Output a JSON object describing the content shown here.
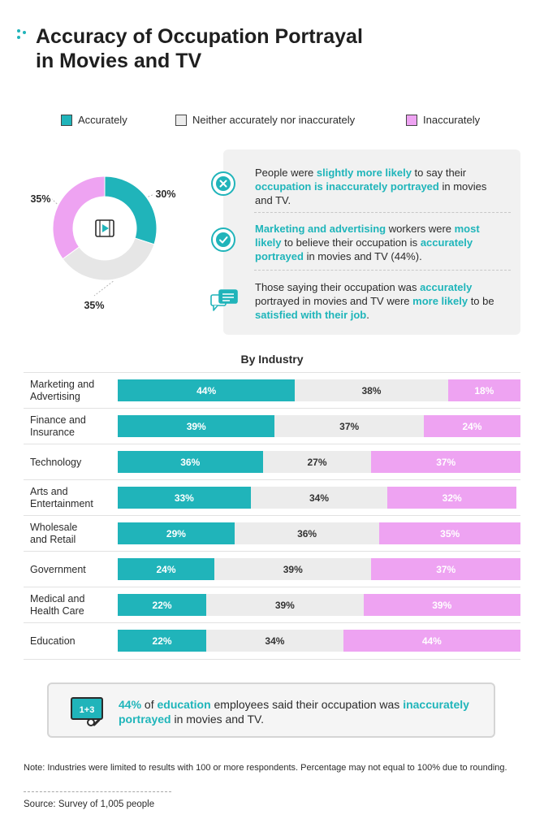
{
  "title_line1": "Accuracy of Occupation Portrayal",
  "title_line2": "in Movies and TV",
  "colors": {
    "accurately": "#20b4ba",
    "neither": "#ececec",
    "inaccurately": "#eea3f2",
    "accent_text": "#1fb5ba"
  },
  "icons": [
    "dots-icon",
    "film-icon",
    "x-circle-icon",
    "check-circle-icon",
    "chat-bubbles-icon",
    "chalkboard-icon"
  ],
  "legend": {
    "accurately": "Accurately",
    "neither": "Neither accurately nor inaccurately",
    "inaccurately": "Inaccurately"
  },
  "insights": [
    {
      "icon": "x-circle-icon",
      "parts": [
        [
          "People were ",
          false
        ],
        [
          "slightly more likely",
          true
        ],
        [
          " to say their ",
          false
        ],
        [
          "occupation is inaccurately portrayed",
          true
        ],
        [
          " in movies and TV.",
          false
        ]
      ]
    },
    {
      "icon": "check-circle-icon",
      "parts": [
        [
          "Marketing and advertising",
          true
        ],
        [
          " workers were ",
          false
        ],
        [
          "most likely",
          true
        ],
        [
          " to believe their occupation is ",
          false
        ],
        [
          "accurately portrayed",
          true
        ],
        [
          " in movies and TV (44%).",
          false
        ]
      ]
    },
    {
      "icon": "chat-bubbles-icon",
      "parts": [
        [
          "Those saying their occupation was ",
          false
        ],
        [
          "accurately",
          true
        ],
        [
          " portrayed in movies and TV were ",
          false
        ],
        [
          "more likely",
          true
        ],
        [
          " to be ",
          false
        ],
        [
          "satisfied with their job",
          true
        ],
        [
          ".",
          false
        ]
      ]
    }
  ],
  "industry_title": "By Industry",
  "callout_parts": [
    [
      "44%",
      true
    ],
    [
      " of ",
      false
    ],
    [
      "education",
      true
    ],
    [
      " employees said their occupation was ",
      false
    ],
    [
      "inaccurately portrayed",
      true
    ],
    [
      " in movies and TV.",
      false
    ]
  ],
  "note": "Note: Industries were limited to results with 100 or more respondents. Percentage may not equal to 100% due to rounding.",
  "source": "Source: Survey of 1,005 people",
  "chart_data": [
    {
      "type": "pie",
      "categories": [
        "Accurately",
        "Neither accurately nor inaccurately",
        "Inaccurately"
      ],
      "values": [
        30,
        35,
        35
      ],
      "labels": [
        "30%",
        "35%",
        "35%"
      ]
    },
    {
      "type": "bar",
      "stacked": true,
      "orientation": "horizontal",
      "title": "By Industry",
      "categories": [
        [
          "Marketing and",
          "Advertising"
        ],
        [
          "Finance and",
          "Insurance"
        ],
        [
          "Technology"
        ],
        [
          "Arts and",
          "Entertainment"
        ],
        [
          "Wholesale",
          "and Retail"
        ],
        [
          "Government"
        ],
        [
          "Medical and",
          "Health Care"
        ],
        [
          "Education"
        ]
      ],
      "series": [
        {
          "name": "Accurately",
          "values": [
            44,
            39,
            36,
            33,
            29,
            24,
            22,
            22
          ]
        },
        {
          "name": "Neither accurately nor inaccurately",
          "values": [
            38,
            37,
            27,
            34,
            36,
            39,
            39,
            34
          ]
        },
        {
          "name": "Inaccurately",
          "values": [
            18,
            24,
            37,
            32,
            35,
            37,
            39,
            44
          ]
        }
      ]
    }
  ]
}
